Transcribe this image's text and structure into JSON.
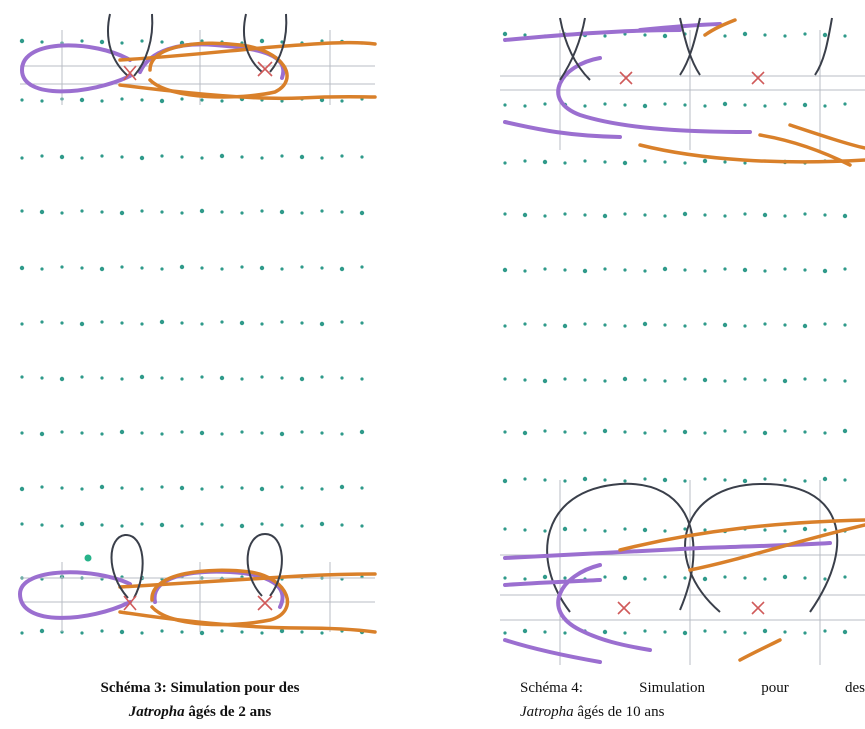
{
  "figures": [
    {
      "caption": {
        "label": "Schéma 3:",
        "text": "Simulation pour des",
        "species": "Jatropha",
        "rest": "âgés de 2 ans"
      }
    },
    {
      "caption": {
        "label": "Schéma 4:",
        "text": "Simulation pour des",
        "species": "Jatropha",
        "rest": "âgés de 10 ans"
      }
    }
  ]
}
